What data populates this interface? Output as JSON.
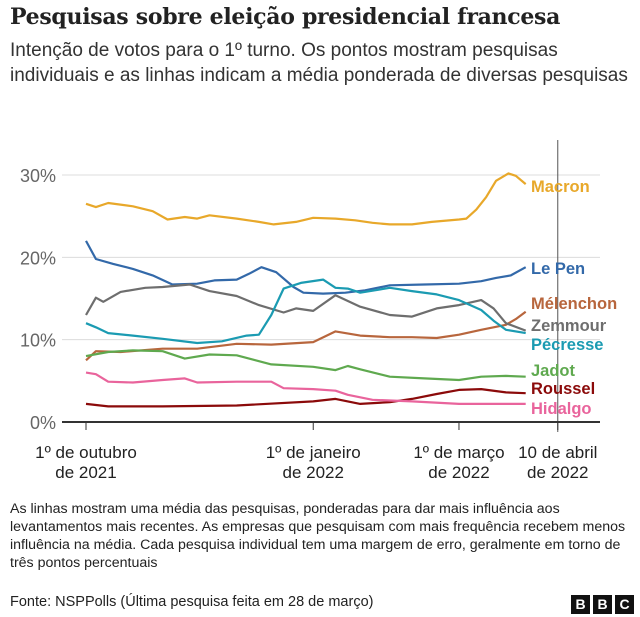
{
  "title": "Pesquisas sobre eleição presidencial francesa",
  "subtitle": "Intenção de votos para o 1º turno. Os pontos mostram pesquisas individuais e as linhas indicam a média ponderada de diversas pesquisas",
  "note": "As linhas mostram uma média das pesquisas, ponderadas para dar mais influência aos levantamentos mais recentes. As empresas que pesquisam com mais frequência recebem menos influência na média. Cada pesquisa individual tem uma margem de erro, geralmente em torno de três pontos percentuais",
  "source": "Fonte: NSPPolls (Última pesquisa feita em 28 de março)",
  "logo": [
    "B",
    "B",
    "C"
  ],
  "chart_data": {
    "type": "line",
    "title": "",
    "xlabel": "",
    "ylabel": "",
    "ylim": [
      0,
      30
    ],
    "xlim": [
      "2021-10-01",
      "2022-04-10"
    ],
    "grid": true,
    "legend": "right (direct labels at line ends)",
    "y_ticks": [
      "0%",
      "10%",
      "20%",
      "30%"
    ],
    "y_tick_values": [
      0,
      10,
      20,
      30
    ],
    "x_ticks": [
      {
        "date": "2021-10-01",
        "line1": "1º de outubro",
        "line2": "de 2021"
      },
      {
        "date": "2022-01-01",
        "line1": "1º de janeiro",
        "line2": "de 2022"
      },
      {
        "date": "2022-03-01",
        "line1": "1º de março",
        "line2": "de 2022"
      },
      {
        "date": "2022-04-10",
        "line1": "10 de abril",
        "line2": "de 2022"
      }
    ],
    "marker_line": "2022-04-10",
    "series": [
      {
        "name": "Macron",
        "color": "#e8a82a",
        "points": [
          [
            "2021-10-01",
            26.5
          ],
          [
            "2021-10-05",
            26.1
          ],
          [
            "2021-10-10",
            26.6
          ],
          [
            "2021-10-20",
            26.2
          ],
          [
            "2021-10-28",
            25.6
          ],
          [
            "2021-11-03",
            24.6
          ],
          [
            "2021-11-10",
            24.9
          ],
          [
            "2021-11-15",
            24.7
          ],
          [
            "2021-11-20",
            25.1
          ],
          [
            "2021-12-01",
            24.7
          ],
          [
            "2021-12-10",
            24.3
          ],
          [
            "2021-12-16",
            24.0
          ],
          [
            "2021-12-25",
            24.3
          ],
          [
            "2022-01-01",
            24.8
          ],
          [
            "2022-01-10",
            24.7
          ],
          [
            "2022-01-18",
            24.5
          ],
          [
            "2022-01-25",
            24.2
          ],
          [
            "2022-02-01",
            24.0
          ],
          [
            "2022-02-10",
            24.0
          ],
          [
            "2022-02-18",
            24.3
          ],
          [
            "2022-03-01",
            24.6
          ],
          [
            "2022-03-04",
            24.7
          ],
          [
            "2022-03-08",
            25.8
          ],
          [
            "2022-03-12",
            27.3
          ],
          [
            "2022-03-16",
            29.3
          ],
          [
            "2022-03-21",
            30.2
          ],
          [
            "2022-03-24",
            29.9
          ],
          [
            "2022-03-28",
            28.9
          ]
        ]
      },
      {
        "name": "Le Pen",
        "color": "#3369a9",
        "points": [
          [
            "2021-10-01",
            22.0
          ],
          [
            "2021-10-05",
            19.8
          ],
          [
            "2021-10-12",
            19.2
          ],
          [
            "2021-10-20",
            18.6
          ],
          [
            "2021-10-28",
            17.8
          ],
          [
            "2021-11-05",
            16.7
          ],
          [
            "2021-11-15",
            16.8
          ],
          [
            "2021-11-22",
            17.2
          ],
          [
            "2021-12-01",
            17.3
          ],
          [
            "2021-12-06",
            18.0
          ],
          [
            "2021-12-11",
            18.8
          ],
          [
            "2021-12-17",
            18.2
          ],
          [
            "2021-12-24",
            16.4
          ],
          [
            "2021-12-28",
            15.7
          ],
          [
            "2022-01-05",
            15.6
          ],
          [
            "2022-01-14",
            15.7
          ],
          [
            "2022-01-22",
            16.0
          ],
          [
            "2022-02-01",
            16.6
          ],
          [
            "2022-02-15",
            16.7
          ],
          [
            "2022-03-01",
            16.8
          ],
          [
            "2022-03-10",
            17.1
          ],
          [
            "2022-03-16",
            17.5
          ],
          [
            "2022-03-22",
            17.8
          ],
          [
            "2022-03-28",
            18.8
          ]
        ]
      },
      {
        "name": "Mélenchon",
        "color": "#b8663d",
        "points": [
          [
            "2021-10-01",
            7.5
          ],
          [
            "2021-10-05",
            8.6
          ],
          [
            "2021-10-15",
            8.5
          ],
          [
            "2021-11-01",
            8.9
          ],
          [
            "2021-11-15",
            8.9
          ],
          [
            "2021-12-01",
            9.5
          ],
          [
            "2021-12-15",
            9.4
          ],
          [
            "2022-01-01",
            9.7
          ],
          [
            "2022-01-10",
            11.0
          ],
          [
            "2022-01-20",
            10.5
          ],
          [
            "2022-02-01",
            10.3
          ],
          [
            "2022-02-10",
            10.3
          ],
          [
            "2022-02-20",
            10.2
          ],
          [
            "2022-03-01",
            10.6
          ],
          [
            "2022-03-10",
            11.2
          ],
          [
            "2022-03-15",
            11.5
          ],
          [
            "2022-03-20",
            11.8
          ],
          [
            "2022-03-24",
            12.5
          ],
          [
            "2022-03-28",
            13.4
          ]
        ]
      },
      {
        "name": "Zemmour",
        "color": "#6e6e6e",
        "points": [
          [
            "2021-10-01",
            13.0
          ],
          [
            "2021-10-05",
            15.1
          ],
          [
            "2021-10-08",
            14.6
          ],
          [
            "2021-10-15",
            15.8
          ],
          [
            "2021-10-25",
            16.3
          ],
          [
            "2021-11-01",
            16.4
          ],
          [
            "2021-11-12",
            16.7
          ],
          [
            "2021-11-20",
            15.9
          ],
          [
            "2021-12-01",
            15.3
          ],
          [
            "2021-12-10",
            14.2
          ],
          [
            "2021-12-20",
            13.3
          ],
          [
            "2021-12-25",
            13.8
          ],
          [
            "2022-01-01",
            13.5
          ],
          [
            "2022-01-10",
            15.4
          ],
          [
            "2022-01-20",
            14.0
          ],
          [
            "2022-02-01",
            13.0
          ],
          [
            "2022-02-10",
            12.8
          ],
          [
            "2022-02-20",
            13.8
          ],
          [
            "2022-03-01",
            14.2
          ],
          [
            "2022-03-10",
            14.8
          ],
          [
            "2022-03-15",
            13.8
          ],
          [
            "2022-03-20",
            12.0
          ],
          [
            "2022-03-28",
            11.1
          ]
        ]
      },
      {
        "name": "Pécresse",
        "color": "#1b9bb2",
        "points": [
          [
            "2021-10-01",
            12.0
          ],
          [
            "2021-10-05",
            11.5
          ],
          [
            "2021-10-10",
            10.8
          ],
          [
            "2021-10-20",
            10.5
          ],
          [
            "2021-11-01",
            10.1
          ],
          [
            "2021-11-15",
            9.6
          ],
          [
            "2021-11-25",
            9.8
          ],
          [
            "2021-12-05",
            10.5
          ],
          [
            "2021-12-10",
            10.6
          ],
          [
            "2021-12-15",
            13.0
          ],
          [
            "2021-12-20",
            16.2
          ],
          [
            "2021-12-27",
            16.9
          ],
          [
            "2022-01-05",
            17.3
          ],
          [
            "2022-01-10",
            16.3
          ],
          [
            "2022-01-15",
            16.2
          ],
          [
            "2022-01-20",
            15.7
          ],
          [
            "2022-02-01",
            16.3
          ],
          [
            "2022-02-10",
            15.9
          ],
          [
            "2022-02-20",
            15.5
          ],
          [
            "2022-03-01",
            14.8
          ],
          [
            "2022-03-10",
            13.6
          ],
          [
            "2022-03-15",
            12.3
          ],
          [
            "2022-03-20",
            11.2
          ],
          [
            "2022-03-28",
            10.8
          ]
        ]
      },
      {
        "name": "Jadot",
        "color": "#5fa94f",
        "points": [
          [
            "2021-10-01",
            8.0
          ],
          [
            "2021-10-10",
            8.5
          ],
          [
            "2021-10-20",
            8.7
          ],
          [
            "2021-11-01",
            8.6
          ],
          [
            "2021-11-10",
            7.7
          ],
          [
            "2021-11-20",
            8.2
          ],
          [
            "2021-12-01",
            8.1
          ],
          [
            "2021-12-15",
            7.0
          ],
          [
            "2022-01-01",
            6.7
          ],
          [
            "2022-01-10",
            6.3
          ],
          [
            "2022-01-15",
            6.8
          ],
          [
            "2022-01-20",
            6.4
          ],
          [
            "2022-02-01",
            5.5
          ],
          [
            "2022-02-15",
            5.3
          ],
          [
            "2022-03-01",
            5.1
          ],
          [
            "2022-03-10",
            5.5
          ],
          [
            "2022-03-20",
            5.6
          ],
          [
            "2022-03-28",
            5.5
          ]
        ]
      },
      {
        "name": "Roussel",
        "color": "#8b0a0a",
        "points": [
          [
            "2021-10-01",
            2.2
          ],
          [
            "2021-10-10",
            1.9
          ],
          [
            "2021-11-01",
            1.9
          ],
          [
            "2021-12-01",
            2.0
          ],
          [
            "2022-01-01",
            2.5
          ],
          [
            "2022-01-10",
            2.8
          ],
          [
            "2022-01-20",
            2.2
          ],
          [
            "2022-02-01",
            2.4
          ],
          [
            "2022-02-10",
            2.8
          ],
          [
            "2022-02-20",
            3.4
          ],
          [
            "2022-03-01",
            3.9
          ],
          [
            "2022-03-10",
            4.0
          ],
          [
            "2022-03-20",
            3.6
          ],
          [
            "2022-03-28",
            3.5
          ]
        ]
      },
      {
        "name": "Hidalgo",
        "color": "#e9649c",
        "points": [
          [
            "2021-10-01",
            6.0
          ],
          [
            "2021-10-05",
            5.8
          ],
          [
            "2021-10-10",
            4.9
          ],
          [
            "2021-10-20",
            4.8
          ],
          [
            "2021-11-01",
            5.1
          ],
          [
            "2021-11-10",
            5.3
          ],
          [
            "2021-11-15",
            4.8
          ],
          [
            "2021-12-01",
            4.9
          ],
          [
            "2021-12-15",
            4.9
          ],
          [
            "2021-12-20",
            4.1
          ],
          [
            "2022-01-01",
            4.0
          ],
          [
            "2022-01-10",
            3.8
          ],
          [
            "2022-01-15",
            3.3
          ],
          [
            "2022-01-25",
            2.7
          ],
          [
            "2022-02-10",
            2.5
          ],
          [
            "2022-03-01",
            2.2
          ],
          [
            "2022-03-28",
            2.2
          ]
        ]
      }
    ]
  }
}
